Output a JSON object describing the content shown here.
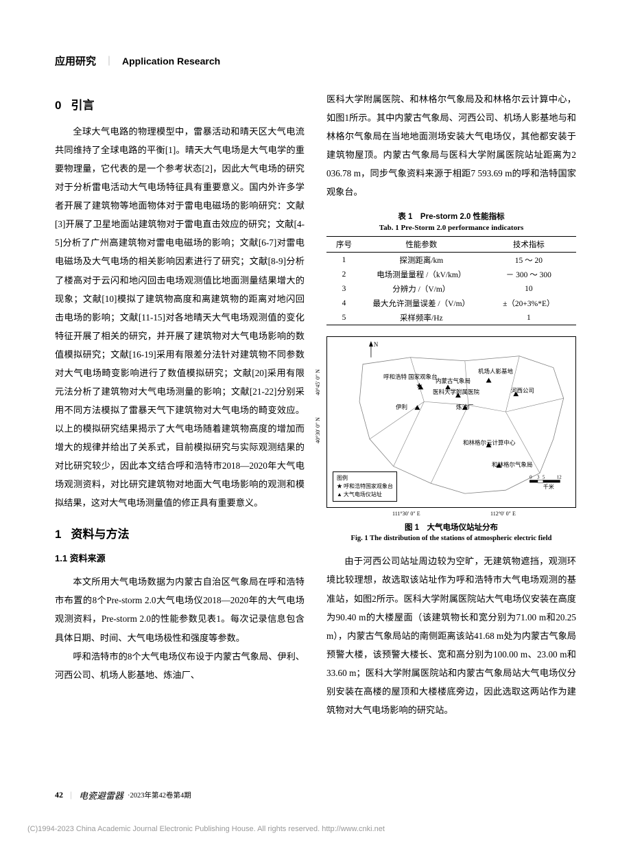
{
  "header": {
    "zh": "应用研究",
    "en": "Application Research"
  },
  "left": {
    "sec0_num": "0",
    "sec0_title": "引言",
    "para0": "全球大气电路的物理模型中，雷暴活动和晴天区大气电流共同维持了全球电路的平衡[1]。晴天大气电场是大气电学的重要物理量，它代表的是一个参考状态[2]，因此大气电场的研究对于分析雷电活动大气电场特征具有重要意义。国内外许多学者开展了建筑物等地面物体对于雷电电磁场的影响研究：文献[3]开展了卫星地面站建筑物对于雷电直击效应的研究；文献[4-5]分析了广州高建筑物对雷电电磁场的影响；文献[6-7]对雷电电磁场及大气电场的相关影响因素进行了研究；文献[8-9]分析了楼高对于云闪和地闪回击电场观测值比地面测量结果增大的现象；文献[10]模拟了建筑物高度和离建筑物的距离对地闪回击电场的影响；文献[11-15]对各地晴天大气电场观测值的变化特征开展了相关的研究，并开展了建筑物对大气电场影响的数值模拟研究；文献[16-19]采用有限差分法针对建筑物不同参数对大气电场畸变影响进行了数值模拟研究；文献[20]采用有限元法分析了建筑物对大气电场测量的影响；文献[21-22]分别采用不同方法模拟了雷暴天气下建筑物对大气电场的畸变效应。以上的模拟研究结果揭示了大气电场随着建筑物高度的增加而增大的规律并给出了关系式，目前模拟研究与实际观测结果的对比研究较少，因此本文结合呼和浩特市2018—2020年大气电场观测资料，对比研究建筑物对地面大气电场影响的观测和模拟结果，这对大气电场测量值的修正具有重要意义。",
    "sec1_num": "1",
    "sec1_title": "资料与方法",
    "sub11": "1.1  资料来源",
    "para11a": "本文所用大气电场数据为内蒙古自治区气象局在呼和浩特市布置的8个Pre-storm 2.0大气电场仪2018—2020年的大气电场观测资料，Pre-storm 2.0的性能参数见表1。每次记录信息包含具体日期、时间、大气电场极性和强度等参数。",
    "para11b": "呼和浩特市的8个大气电场仪布设于内蒙古气象局、伊利、河西公司、机场人影基地、炼油厂、"
  },
  "right": {
    "para_top": "医科大学附属医院、和林格尔气象局及和林格尔云计算中心，如图1所示。其中内蒙古气象局、河西公司、机场人影基地与和林格尔气象局在当地地面测场安装大气电场仪，其他都安装于建筑物屋顶。内蒙古气象局与医科大学附属医院站址距离为2 036.78 m，同步气象资料来源于相距7 593.69 m的呼和浩特国家观象台。",
    "table1": {
      "cap_zh": "表 1　Pre-storm 2.0 性能指标",
      "cap_en": "Tab. 1 Pre-Storm 2.0 performance indicators",
      "headers": [
        "序号",
        "性能参数",
        "技术指标"
      ],
      "rows": [
        [
          "1",
          "探测距离/km",
          "15 ～ 20"
        ],
        [
          "2",
          "电场测量量程 /（kV/km）",
          "－ 300 ～ 300"
        ],
        [
          "3",
          "分辨力 /（V/m）",
          "10"
        ],
        [
          "4",
          "最大允许测量误差 /（V/m）",
          "±（20+3%*E）"
        ],
        [
          "5",
          "采样频率/Hz",
          "1"
        ]
      ]
    },
    "fig1": {
      "cap_zh": "图 1　大气电场仪站址分布",
      "cap_en": "Fig. 1 The distribution of the stations of atmospheric electric field",
      "labels": {
        "hhht_obs": "呼和浩特\n国家观象台",
        "nmg_met": "内蒙古气象局",
        "airport": "机场人影基地",
        "hospital": "医科大学附属医院",
        "hexi": "河西公司",
        "yili": "伊利",
        "refinery": "炼油厂",
        "hlge_cloud": "和林格尔云计算中心",
        "hlge_met": "和林格尔气象局"
      },
      "legend": {
        "title": "图例",
        "obs": "呼和浩特国家观象台",
        "station": "大气电场仪站址"
      },
      "axis": {
        "x_ticks": [
          "111°30′ 0″ E",
          "112°0′ 0″ E"
        ],
        "y_ticks": [
          "40°30′ 0″ N",
          "40°45′ 0″ N"
        ],
        "north": "N"
      },
      "scale": "0  3 5  12\n千米",
      "colors": {
        "boundary": "#808080",
        "marker": "#000000",
        "border": "#000000"
      }
    },
    "para_mid": "由于河西公司站址周边较为空旷，无建筑物遮挡，观测环境比较理想，故选取该站址作为呼和浩特市大气电场观测的基准站，如图2所示。医科大学附属医院站大气电场仪安装在高度为90.40 m的大楼屋面（该建筑物长和宽分别为71.00 m和20.25 m），内蒙古气象局站的南侧距离该站41.68 m处为内蒙古气象局预警大楼，该预警大楼长、宽和高分别为100.00 m、23.00 m和33.60 m；医科大学附属医院站和内蒙古气象局站大气电场仪分别安装在高楼的屋顶和大楼楼底旁边，因此选取这两站作为建筑物对大气电场影响的研究站。"
  },
  "footer": {
    "page": "42",
    "journal": "电瓷避雷器",
    "issue": "·2023年第42卷第4期"
  },
  "copyright": "(C)1994-2023 China Academic Journal Electronic Publishing House. All rights reserved.    http://www.cnki.net"
}
